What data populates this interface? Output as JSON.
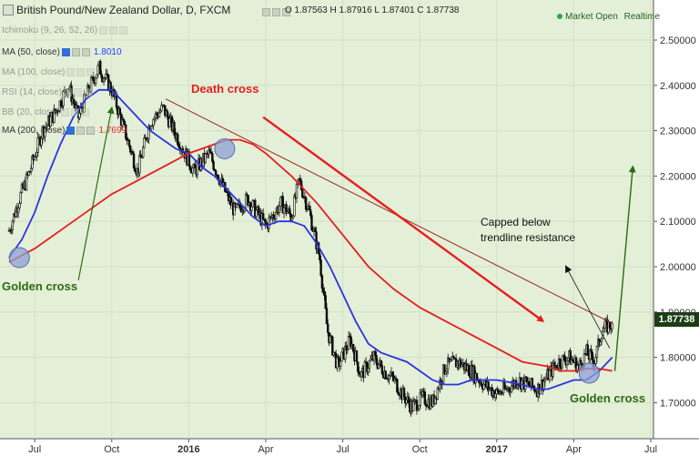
{
  "header": {
    "symbol_title": "British Pound/New Zealand Dollar, D, FXCM",
    "ohlc_text": "O 1.87563 H 1.87916 L 1.87401 C 1.87738",
    "market_status": "Market Open",
    "realtime_label": "Realtime"
  },
  "indicators": [
    {
      "label": "Ichimoku (9, 26, 52, 26)",
      "value": "",
      "faded": true
    },
    {
      "label": "MA (50, close)",
      "value": "1.8010",
      "faded": false
    },
    {
      "label": "MA (100, close)",
      "value": "",
      "faded": true
    },
    {
      "label": "RSI (14, close)",
      "value": "",
      "faded": true
    },
    {
      "label": "BB (20, close)",
      "value": "",
      "faded": true
    },
    {
      "label": "MA (200, close)",
      "value": "1.7699",
      "faded": false
    }
  ],
  "last_price_label": "1.87738",
  "colors": {
    "background": "#e4efd8",
    "ma50": "#2b34e0",
    "ma200": "#e61e1e",
    "candles": "#0c0c0c",
    "annotation_red": "#e61e1e",
    "annotation_green": "#2c6b12",
    "price_box": "#1a3d14"
  },
  "annotations": {
    "golden_cross_left": "Golden cross",
    "death_cross": "Death cross",
    "golden_cross_right": "Golden cross",
    "capped_line1": "Capped below",
    "capped_line2": "trendline resistance"
  },
  "chart_data": {
    "type": "candlestick",
    "title": "British Pound/New Zealand Dollar, D, FXCM",
    "x_tick_labels": [
      "Jul",
      "Oct",
      "2016",
      "Apr",
      "Jul",
      "Oct",
      "2017",
      "Apr",
      "Jul"
    ],
    "y_tick_labels": [
      "2.50000",
      "2.40000",
      "2.30000",
      "2.20000",
      "2.10000",
      "2.00000",
      "1.90000",
      "1.80000",
      "1.70000"
    ],
    "y_range": [
      1.64,
      2.55
    ],
    "x_range_months": [
      0,
      25
    ],
    "grid": true,
    "price_path": {
      "months": [
        0,
        0.4,
        0.8,
        1.3,
        1.8,
        2.3,
        2.7,
        3.1,
        3.5,
        4.0,
        4.5,
        5.0,
        5.5,
        6.0,
        6.6,
        7.2,
        7.8,
        8.3,
        8.8,
        9.3,
        10.0,
        10.6,
        11.0,
        11.3,
        11.7,
        12.1,
        12.4,
        12.8,
        13.3,
        13.7,
        14.2,
        14.6,
        15.0,
        15.3,
        15.7,
        16.1,
        16.5,
        17.0,
        17.5,
        18.0,
        18.5,
        19.0,
        19.4,
        19.8,
        20.2,
        20.6,
        21.0,
        21.4,
        21.8,
        22.2,
        22.5,
        22.8,
        23.1,
        23.5
      ],
      "closes": [
        2.08,
        2.15,
        2.21,
        2.3,
        2.34,
        2.4,
        2.33,
        2.39,
        2.44,
        2.39,
        2.3,
        2.21,
        2.32,
        2.35,
        2.28,
        2.21,
        2.25,
        2.18,
        2.12,
        2.15,
        2.09,
        2.14,
        2.11,
        2.19,
        2.12,
        2.02,
        1.86,
        1.78,
        1.84,
        1.76,
        1.8,
        1.77,
        1.75,
        1.72,
        1.69,
        1.71,
        1.7,
        1.78,
        1.79,
        1.77,
        1.74,
        1.72,
        1.73,
        1.75,
        1.74,
        1.73,
        1.76,
        1.79,
        1.8,
        1.78,
        1.81,
        1.79,
        1.86,
        1.875
      ]
    },
    "series": [
      {
        "name": "MA (50, close)",
        "color": "#2b34e0",
        "months": [
          0,
          0.5,
          1.0,
          1.5,
          2.0,
          2.5,
          3.0,
          3.5,
          4.0,
          4.5,
          5.0,
          5.5,
          6.0,
          6.5,
          7.0,
          7.5,
          8.0,
          8.5,
          9.0,
          9.5,
          10.0,
          10.5,
          11.0,
          11.5,
          12.0,
          12.5,
          13.0,
          13.5,
          14.0,
          14.5,
          15.0,
          15.5,
          16.0,
          16.5,
          17.0,
          17.5,
          18.0,
          18.5,
          19.0,
          19.5,
          20.0,
          20.5,
          21.0,
          21.5,
          22.0,
          22.5,
          23.0,
          23.5
        ],
        "values": [
          2.02,
          2.06,
          2.12,
          2.2,
          2.27,
          2.33,
          2.37,
          2.39,
          2.39,
          2.36,
          2.33,
          2.3,
          2.28,
          2.26,
          2.25,
          2.22,
          2.2,
          2.17,
          2.14,
          2.11,
          2.09,
          2.1,
          2.1,
          2.09,
          2.05,
          2.0,
          1.94,
          1.88,
          1.83,
          1.81,
          1.8,
          1.79,
          1.77,
          1.75,
          1.74,
          1.74,
          1.75,
          1.75,
          1.75,
          1.745,
          1.74,
          1.73,
          1.73,
          1.74,
          1.75,
          1.75,
          1.77,
          1.8
        ]
      },
      {
        "name": "MA (200, close)",
        "color": "#e61e1e",
        "months": [
          0,
          1.0,
          2.0,
          3.0,
          4.0,
          5.0,
          6.0,
          7.0,
          8.0,
          8.5,
          9.0,
          9.5,
          10.0,
          11.0,
          12.0,
          13.0,
          14.0,
          15.0,
          16.0,
          17.0,
          18.0,
          19.0,
          20.0,
          21.0,
          21.5,
          22.0,
          22.5,
          23.0,
          23.5
        ],
        "values": [
          2.01,
          2.04,
          2.08,
          2.12,
          2.16,
          2.19,
          2.22,
          2.25,
          2.27,
          2.28,
          2.28,
          2.27,
          2.25,
          2.2,
          2.14,
          2.07,
          2.0,
          1.95,
          1.91,
          1.88,
          1.85,
          1.82,
          1.79,
          1.78,
          1.77,
          1.77,
          1.775,
          1.775,
          1.77
        ]
      }
    ],
    "trendline": {
      "months": [
        6.1,
        23.5
      ],
      "values": [
        2.37,
        1.875
      ]
    },
    "cross_markers": [
      {
        "label": "Golden cross",
        "month": 0.4,
        "value": 2.02
      },
      {
        "label": "Death cross",
        "month": 8.4,
        "value": 2.26
      },
      {
        "label": "Golden cross",
        "month": 22.6,
        "value": 1.765
      }
    ]
  }
}
